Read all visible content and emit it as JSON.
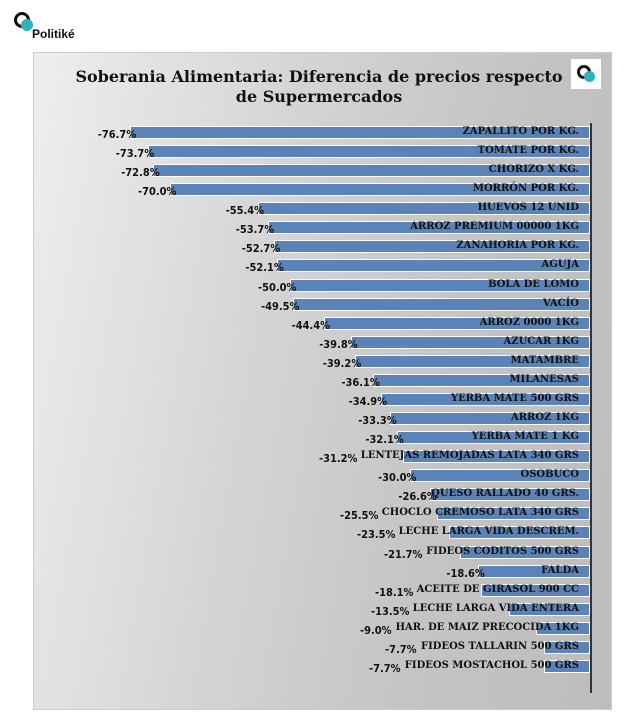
{
  "brand": {
    "name": "Politiké"
  },
  "chart_data": {
    "type": "bar",
    "orientation": "horizontal",
    "title": "Soberania Alimentaria: Diferencia de precios respecto de Supermercados",
    "title_line1": "Soberania Alimentaria: Diferencia de precios respecto",
    "title_line2": "de Supermercados",
    "bar_color": "#5b83b8",
    "categories": [
      "ZAPALLITO POR KG.",
      "TOMATE POR KG.",
      "CHORIZO X KG.",
      "MORRÓN POR KG.",
      "HUEVOS 12 UNID",
      "ARROZ PREMIUM 00000 1KG",
      "ZANAHORIA POR KG.",
      "AGUJA",
      "BOLA DE LOMO",
      "VACÍO",
      "ARROZ 0000 1KG",
      "AZUCAR 1KG",
      "MATAMBRE",
      "MILANESAS",
      "YERBA MATE 500 GRS",
      "ARROZ 1KG",
      "YERBA MATE 1 KG",
      "LENTEJAS REMOJADAS LATA 340 GRS",
      "OSOBUCO",
      "QUESO  RALLADO  40  GRS.",
      "CHOCLO  CREMOSO LATA 340 GRS",
      "LECHE LARGA VIDA DESCREM.",
      "FIDEOS CODITOS 500 GRS",
      "FALDA",
      "ACEITE DE GIRASOL 900 CC",
      "LECHE LARGA VIDA ENTERA",
      "HAR. DE MAIZ PRECOCIDA 1KG",
      "FIDEOS  TALLARIN  500  GRS",
      "FIDEOS MOSTACHOL 500 GRS"
    ],
    "values": [
      -76.7,
      -73.7,
      -72.8,
      -70.0,
      -55.4,
      -53.7,
      -52.7,
      -52.1,
      -50.0,
      -49.5,
      -44.4,
      -39.8,
      -39.2,
      -36.1,
      -34.9,
      -33.3,
      -32.1,
      -31.2,
      -30.0,
      -26.6,
      -25.5,
      -23.5,
      -21.7,
      -18.6,
      -18.1,
      -13.5,
      -9.0,
      -7.7,
      -7.7
    ],
    "labels": [
      "-76.7%",
      "-73.7%",
      "-72.8%",
      "-70.0%",
      "-55.4%",
      "-53.7%",
      "-52.7%",
      "-52.1%",
      "-50.0%",
      "-49.5%",
      "-44.4%",
      "-39.8%",
      "-39.2%",
      "-36.1%",
      "-34.9%",
      "-33.3%",
      "-32.1%",
      "-31.2%",
      "-30.0%",
      "-26.6%",
      "-25.5%",
      "-23.5%",
      "-21.7%",
      "-18.6%",
      "-18.1%",
      "-13.5%",
      "-9.0%",
      "-7.7%",
      "-7.7%"
    ],
    "unit": "%",
    "grid": false,
    "legend": "none"
  }
}
